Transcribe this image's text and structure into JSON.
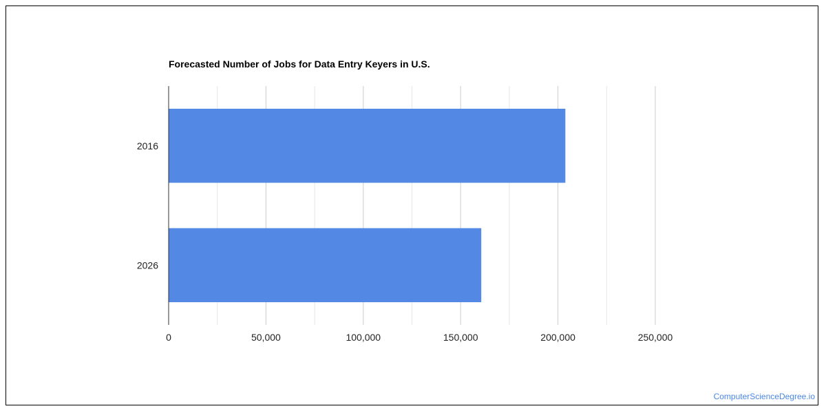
{
  "chart_data": {
    "type": "bar",
    "orientation": "horizontal",
    "title": "Forecasted Number of Jobs for Data Entry Keyers in U.S.",
    "categories": [
      "2016",
      "2026"
    ],
    "values": [
      203800,
      160600
    ],
    "xlim": [
      0,
      250000
    ],
    "xticks": [
      0,
      50000,
      100000,
      150000,
      200000,
      250000
    ],
    "xtick_labels": [
      "0",
      "50,000",
      "100,000",
      "150,000",
      "200,000",
      "250,000"
    ],
    "xlabel": "",
    "ylabel": "",
    "grid": true,
    "legend": "none",
    "bar_color": "#5388e4"
  },
  "watermark": "ComputerScienceDegree.io"
}
